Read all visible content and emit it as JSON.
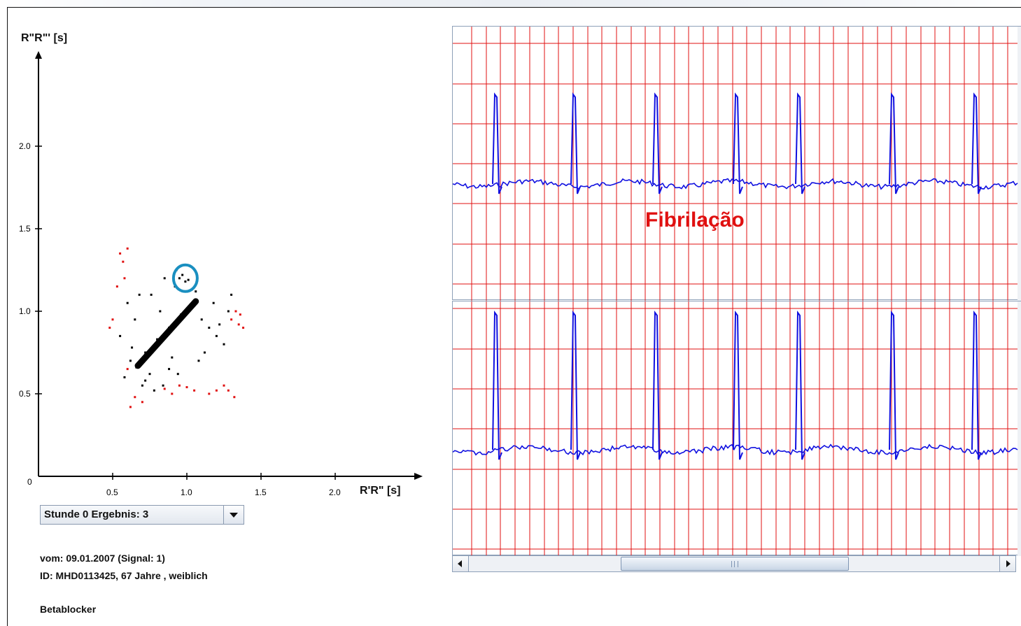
{
  "scatter": {
    "y_axis_label": "R\"R\"' [s]",
    "x_axis_label": "R'R\" [s]",
    "origin_label": "0",
    "y_ticks": [
      "2.0",
      "1.5",
      "1.0",
      "0.5"
    ],
    "x_ticks": [
      "0.5",
      "1.0",
      "1.5",
      "2.0"
    ],
    "colors": {
      "normal": "#000000",
      "flagged": "#e01010",
      "highlight_ring": "#1a8fc0"
    },
    "highlight_icon": "circle-highlight"
  },
  "chart_data": {
    "type": "scatter",
    "title": "",
    "xlabel": "R'R\" [s]",
    "ylabel": "R\"R\"' [s]",
    "xlim": [
      0,
      2.5
    ],
    "ylim": [
      0,
      2.5
    ],
    "grid": false,
    "series": [
      {
        "color": "#000000",
        "x": [
          0.66,
          0.7,
          0.74,
          0.78,
          0.82,
          0.86,
          0.9,
          0.94,
          0.98,
          1.02,
          1.05,
          0.72,
          0.8,
          0.88,
          0.96,
          1.0,
          1.04,
          0.85,
          0.92,
          1.1,
          1.15,
          1.2,
          1.25,
          0.6,
          0.65,
          0.75,
          0.55,
          0.62,
          0.68,
          0.95,
          0.97,
          0.99,
          1.01,
          0.93,
          0.84,
          0.78,
          0.7,
          0.58,
          0.63,
          1.08,
          1.12,
          1.18,
          1.22,
          1.28,
          1.3,
          0.88,
          0.82,
          0.76,
          0.72,
          0.9,
          0.94,
          1.06
        ],
        "y": [
          0.66,
          0.7,
          0.74,
          0.78,
          0.82,
          0.86,
          0.9,
          0.94,
          0.98,
          1.02,
          1.05,
          0.75,
          0.83,
          0.9,
          0.98,
          1.01,
          1.03,
          1.2,
          1.15,
          0.95,
          0.9,
          0.85,
          0.8,
          1.05,
          0.95,
          0.62,
          0.85,
          0.7,
          1.1,
          1.2,
          1.22,
          1.18,
          1.19,
          1.25,
          0.55,
          0.52,
          0.55,
          0.6,
          0.78,
          0.7,
          0.75,
          1.05,
          0.92,
          1.0,
          1.1,
          0.65,
          1.0,
          1.1,
          0.58,
          0.72,
          0.62,
          1.12
        ]
      },
      {
        "color": "#e01010",
        "x": [
          0.55,
          0.57,
          0.6,
          0.58,
          0.53,
          0.5,
          0.48,
          1.3,
          1.33,
          1.35,
          1.38,
          1.36,
          1.25,
          1.28,
          1.32,
          0.95,
          1.0,
          1.05,
          0.9,
          0.85,
          1.15,
          1.2,
          0.6,
          0.62,
          0.65,
          0.7
        ],
        "y": [
          1.35,
          1.3,
          1.38,
          1.2,
          1.15,
          0.95,
          0.9,
          0.95,
          1.0,
          0.92,
          0.9,
          0.98,
          0.55,
          0.52,
          0.48,
          0.55,
          0.54,
          0.52,
          0.5,
          0.53,
          0.5,
          0.52,
          0.65,
          0.42,
          0.48,
          0.45
        ]
      }
    ]
  },
  "dropdown": {
    "selected": "Stunde 0 Ergebnis: 3"
  },
  "info": {
    "line1": "vom: 09.01.2007 (Signal: 1)",
    "line2": "ID: MHD0113425, 67 Jahre , weiblich",
    "line3": "Betablocker"
  },
  "ecg": {
    "overlay_label": "Fibrilação",
    "grid_color": "#e01010",
    "trace_color": "#1010e0"
  }
}
